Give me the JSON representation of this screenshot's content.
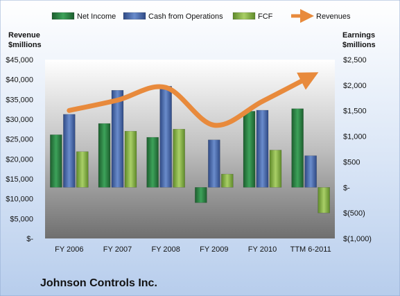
{
  "chart_data": {
    "type": "bar",
    "title": "Johnson Controls Inc.",
    "categories": [
      "FY 2006",
      "FY 2007",
      "FY 2008",
      "FY 2009",
      "FY 2010",
      "TTM 6-2011"
    ],
    "series": [
      {
        "name": "Net Income",
        "axis": "right",
        "type": "bar",
        "color": "#2e8b45",
        "values": [
          1030,
          1250,
          980,
          -300,
          1490,
          1540
        ]
      },
      {
        "name": "Cash from Operations",
        "axis": "right",
        "type": "bar",
        "color": "#4f6fb3",
        "values": [
          1430,
          1900,
          1980,
          930,
          1510,
          620
        ]
      },
      {
        "name": "FCF",
        "axis": "right",
        "type": "bar",
        "color": "#8db64a",
        "values": [
          700,
          1100,
          1140,
          260,
          730,
          -500
        ]
      },
      {
        "name": "Revenues",
        "axis": "left",
        "type": "line",
        "color": "#e88a3c",
        "values": [
          32200,
          34800,
          38000,
          28500,
          34500,
          40800
        ]
      }
    ],
    "left_axis": {
      "label": "Revenue $millions",
      "label_lines": [
        "Revenue",
        "$millions"
      ],
      "range": [
        0,
        45000
      ],
      "ticks": [
        0,
        5000,
        10000,
        15000,
        20000,
        25000,
        30000,
        35000,
        40000,
        45000
      ],
      "tick_labels": [
        "$-",
        "$5,000",
        "$10,000",
        "$15,000",
        "$20,000",
        "$25,000",
        "$30,000",
        "$35,000",
        "$40,000",
        "$45,000"
      ]
    },
    "right_axis": {
      "label": "Earnings $millions",
      "label_lines": [
        "Earnings",
        "$millions"
      ],
      "range": [
        -1000,
        2500
      ],
      "ticks": [
        -1000,
        -500,
        0,
        500,
        1000,
        1500,
        2000,
        2500
      ],
      "tick_labels": [
        "$(1,000)",
        "$(500)",
        "$-",
        "$500",
        "$1,000",
        "$1,500",
        "$2,000",
        "$2,500"
      ]
    },
    "legend_position": "top",
    "grid": false
  }
}
